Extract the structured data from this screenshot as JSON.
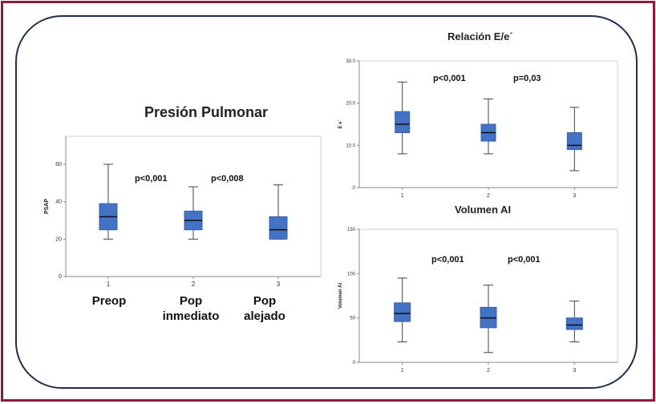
{
  "chart_data": [
    {
      "type": "box",
      "title": "Presión Pulmonar",
      "ylabel": "PSAP",
      "xlabel": "",
      "ylim": [
        0,
        75
      ],
      "yticks": [
        "0",
        "20",
        "40",
        "60"
      ],
      "categories": [
        "1",
        "2",
        "3"
      ],
      "category_names": [
        [
          "Preop"
        ],
        [
          "Pop",
          "inmediato"
        ],
        [
          "Pop",
          "alejado"
        ]
      ],
      "boxes": [
        {
          "min": 20,
          "q1": 25,
          "median": 32,
          "q3": 39,
          "max": 60
        },
        {
          "min": 20,
          "q1": 25,
          "median": 30,
          "q3": 35,
          "max": 48
        },
        {
          "min": 20,
          "q1": 20,
          "median": 25,
          "q3": 32,
          "max": 49
        }
      ],
      "annotations": [
        "p<0,001",
        "p<0,008"
      ],
      "color": "#4472c4"
    },
    {
      "type": "box",
      "title": "Relación E/e´",
      "ylabel": "E e´",
      "xlabel": "",
      "ylim": [
        0,
        30
      ],
      "yticks": [
        ".0",
        "10.0",
        "20.0",
        "30.0"
      ],
      "categories": [
        "1",
        "2",
        "3"
      ],
      "boxes": [
        {
          "min": 8,
          "q1": 13,
          "median": 15,
          "q3": 18,
          "max": 25
        },
        {
          "min": 8,
          "q1": 11,
          "median": 13,
          "q3": 15,
          "max": 21
        },
        {
          "min": 4,
          "q1": 9,
          "median": 10,
          "q3": 13,
          "max": 19
        }
      ],
      "annotations": [
        "p<0,001",
        "p=0,03"
      ],
      "color": "#4472c4"
    },
    {
      "type": "box",
      "title": "Volumen AI",
      "ylabel": "Volumen AI",
      "xlabel": "",
      "ylim": [
        0,
        150
      ],
      "yticks": [
        "0",
        "50",
        "100",
        "150"
      ],
      "categories": [
        "1",
        "2",
        "3"
      ],
      "boxes": [
        {
          "min": 23,
          "q1": 46,
          "median": 55,
          "q3": 67,
          "max": 95
        },
        {
          "min": 11,
          "q1": 39,
          "median": 50,
          "q3": 62,
          "max": 87
        },
        {
          "min": 23,
          "q1": 37,
          "median": 42,
          "q3": 50,
          "max": 69
        }
      ],
      "annotations": [
        "p<0,001",
        "p<0,001"
      ],
      "color": "#4472c4"
    }
  ]
}
